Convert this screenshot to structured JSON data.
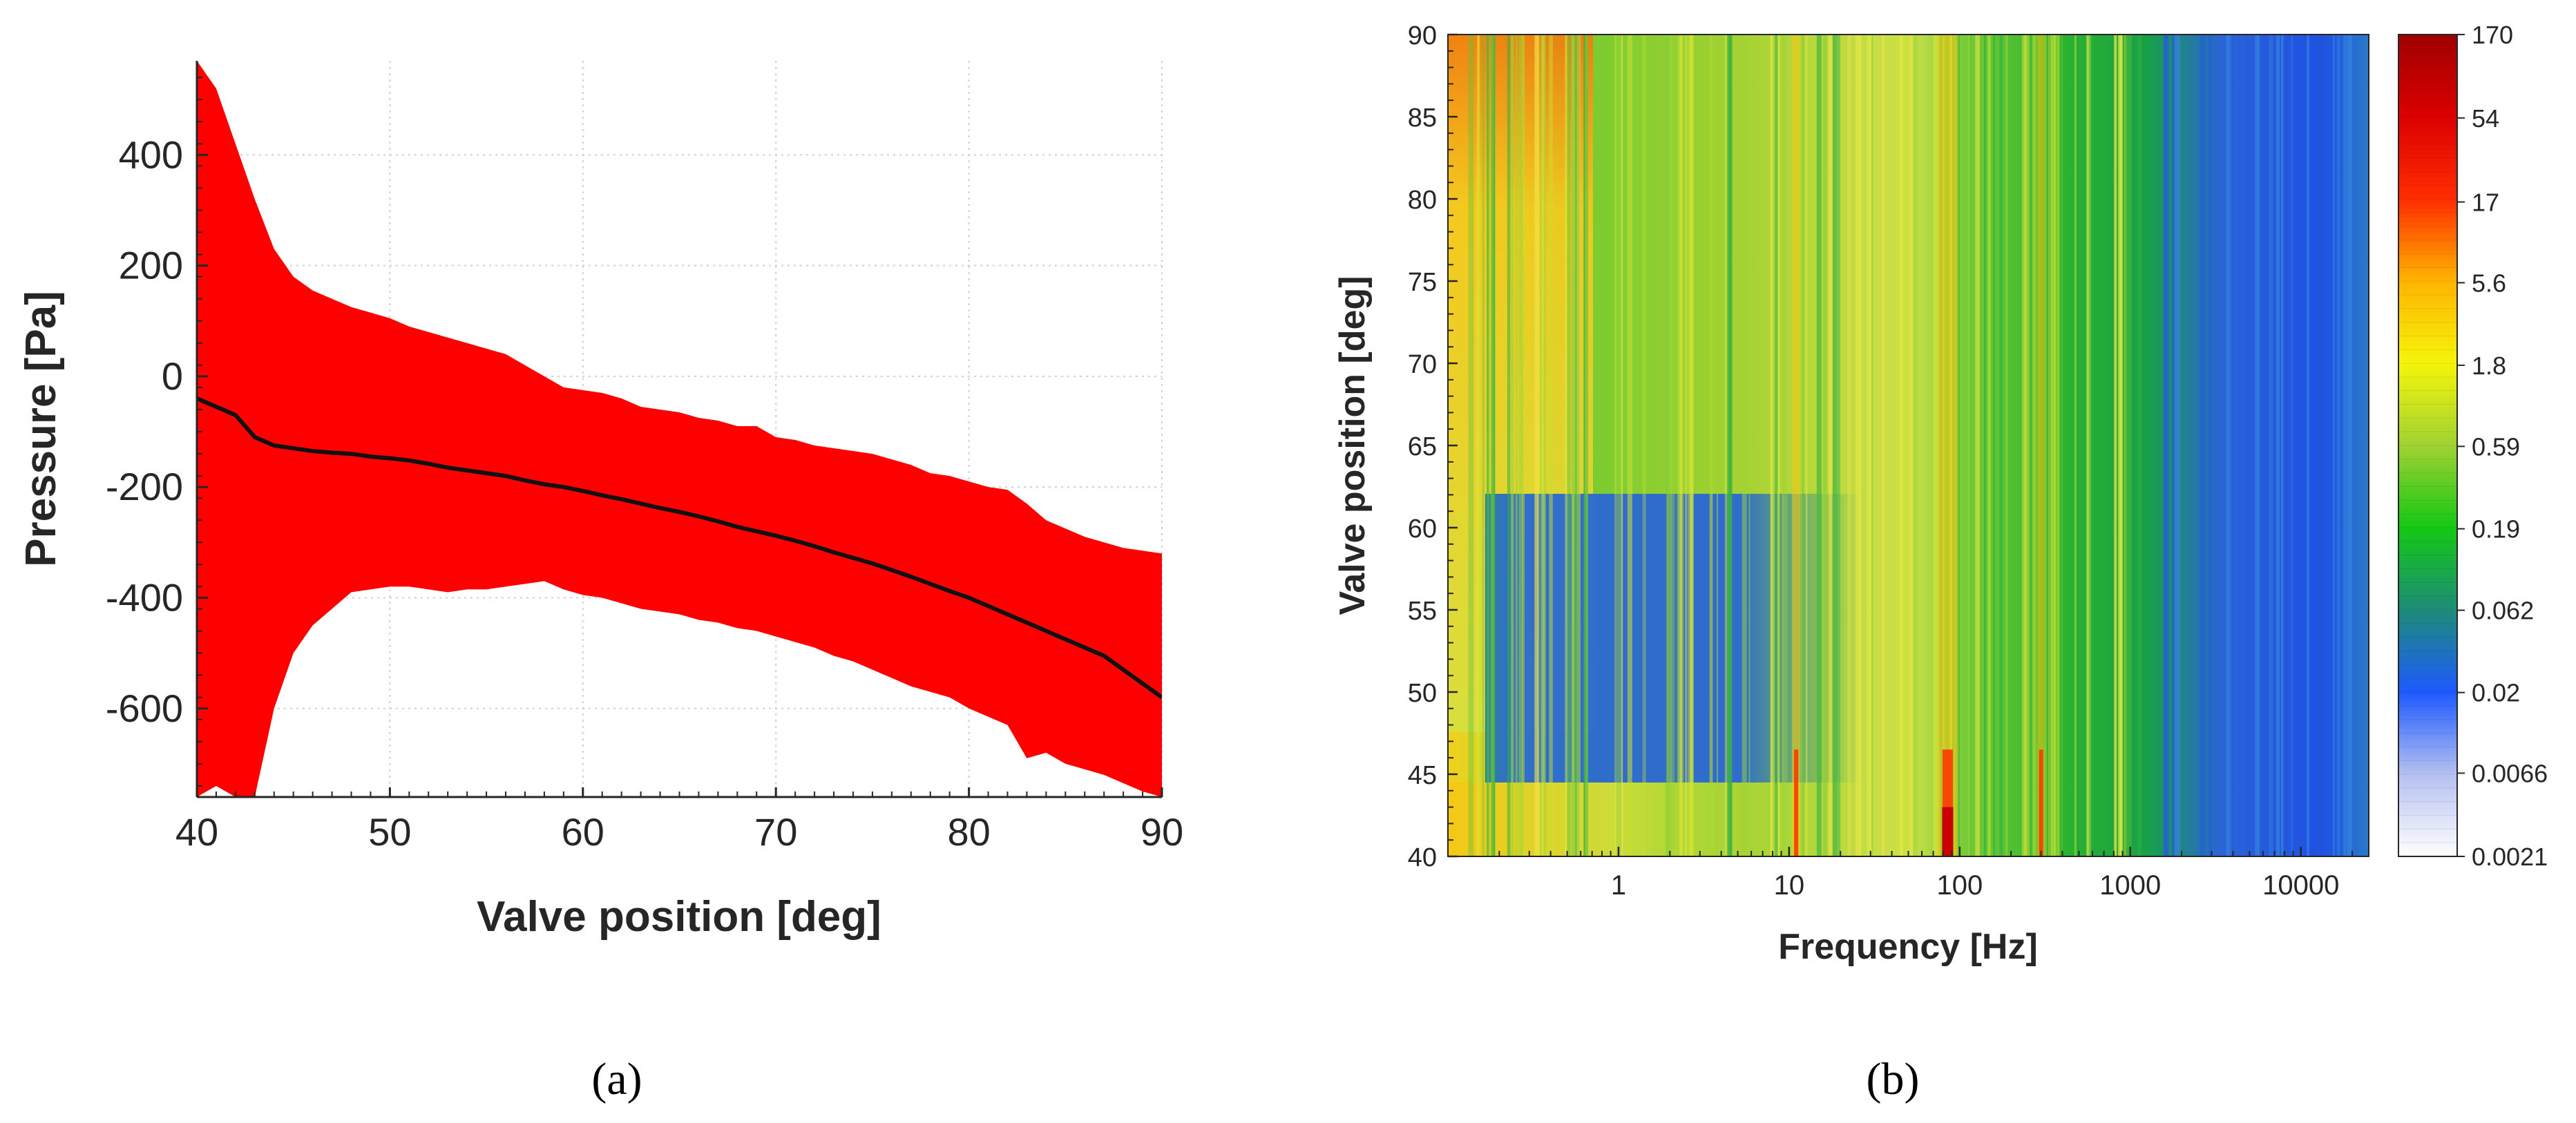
{
  "chart_data": [
    {
      "type": "area",
      "panel_label": "(a)",
      "xlabel": "Valve position [deg]",
      "ylabel": "Pressure [Pa]",
      "xlim": [
        40,
        90
      ],
      "ylim": [
        -760,
        570
      ],
      "grid": true,
      "xticks": [
        40,
        50,
        60,
        70,
        80,
        90
      ],
      "xtick_labels": [
        "40",
        "50",
        "60",
        "70",
        "80",
        "90"
      ],
      "yticks": [
        -600,
        -400,
        -200,
        0,
        200,
        400
      ],
      "ytick_labels": [
        "-600",
        "-400",
        "-200",
        "0",
        "200",
        "400"
      ],
      "colors": {
        "band": "#ff0000",
        "mean": "#111111"
      },
      "series": [
        {
          "name": "upper envelope",
          "x": [
            40,
            41,
            42,
            43,
            44,
            45,
            46,
            47,
            48,
            49,
            50,
            51,
            52,
            53,
            54,
            55,
            56,
            57,
            58,
            59,
            60,
            61,
            62,
            63,
            64,
            65,
            66,
            67,
            68,
            69,
            70,
            71,
            72,
            73,
            74,
            75,
            76,
            77,
            78,
            79,
            80,
            81,
            82,
            83,
            84,
            85,
            86,
            87,
            88,
            89,
            90
          ],
          "values": [
            570,
            520,
            420,
            320,
            230,
            180,
            155,
            140,
            125,
            115,
            105,
            90,
            80,
            70,
            60,
            50,
            40,
            20,
            0,
            -20,
            -25,
            -30,
            -40,
            -55,
            -60,
            -65,
            -75,
            -80,
            -90,
            -90,
            -110,
            -115,
            -125,
            -130,
            -135,
            -140,
            -150,
            -160,
            -175,
            -180,
            -190,
            -200,
            -205,
            -230,
            -260,
            -275,
            -290,
            -300,
            -310,
            -315,
            -320
          ]
        },
        {
          "name": "lower envelope",
          "x": [
            40,
            41,
            42,
            43,
            44,
            45,
            46,
            47,
            48,
            49,
            50,
            51,
            52,
            53,
            54,
            55,
            56,
            57,
            58,
            59,
            60,
            61,
            62,
            63,
            64,
            65,
            66,
            67,
            68,
            69,
            70,
            71,
            72,
            73,
            74,
            75,
            76,
            77,
            78,
            79,
            80,
            81,
            82,
            83,
            84,
            85,
            86,
            87,
            88,
            89,
            90
          ],
          "values": [
            -760,
            -740,
            -760,
            -760,
            -600,
            -500,
            -450,
            -420,
            -390,
            -385,
            -380,
            -380,
            -385,
            -390,
            -385,
            -385,
            -380,
            -375,
            -370,
            -385,
            -395,
            -400,
            -410,
            -420,
            -425,
            -430,
            -440,
            -445,
            -455,
            -460,
            -470,
            -480,
            -490,
            -505,
            -515,
            -530,
            -545,
            -560,
            -570,
            -580,
            -600,
            -615,
            -630,
            -690,
            -680,
            -700,
            -710,
            -720,
            -735,
            -750,
            -760
          ]
        },
        {
          "name": "mean",
          "x": [
            40,
            41,
            42,
            43,
            44,
            45,
            46,
            47,
            48,
            49,
            50,
            51,
            52,
            53,
            54,
            55,
            56,
            57,
            58,
            59,
            60,
            61,
            62,
            63,
            64,
            65,
            66,
            67,
            68,
            69,
            70,
            71,
            72,
            73,
            74,
            75,
            76,
            77,
            78,
            79,
            80,
            81,
            82,
            83,
            84,
            85,
            86,
            87,
            88,
            89,
            90
          ],
          "values": [
            -40,
            -55,
            -70,
            -110,
            -125,
            -130,
            -135,
            -138,
            -140,
            -145,
            -148,
            -152,
            -158,
            -165,
            -170,
            -175,
            -180,
            -188,
            -195,
            -200,
            -207,
            -215,
            -222,
            -230,
            -238,
            -245,
            -253,
            -262,
            -272,
            -280,
            -288,
            -297,
            -307,
            -318,
            -328,
            -338,
            -350,
            -362,
            -375,
            -388,
            -400,
            -415,
            -430,
            -445,
            -460,
            -475,
            -490,
            -505,
            -530,
            -555,
            -580
          ]
        }
      ]
    },
    {
      "type": "heatmap",
      "panel_label": "(b)",
      "xlabel": "Frequency [Hz]",
      "ylabel": "Valve position [deg]",
      "xscale": "log",
      "xlim": [
        0.1,
        25000
      ],
      "ylim": [
        40,
        90
      ],
      "xticks": [
        1,
        10,
        100,
        1000,
        10000
      ],
      "xtick_labels": [
        "1",
        "10",
        "100",
        "1000",
        "10000"
      ],
      "yticks": [
        40,
        45,
        50,
        55,
        60,
        65,
        70,
        75,
        80,
        85,
        90
      ],
      "ytick_labels": [
        "40",
        "45",
        "50",
        "55",
        "60",
        "65",
        "70",
        "75",
        "80",
        "85",
        "90"
      ],
      "colorbar": {
        "scale": "log",
        "range": [
          0.0021,
          170
        ],
        "tick_values": [
          0.0021,
          0.0066,
          0.02,
          0.062,
          0.19,
          0.59,
          1.8,
          5.6,
          17,
          54,
          170
        ],
        "tick_labels": [
          "0.0021",
          "0.0066",
          "0.02",
          "0.062",
          "0.19",
          "0.59",
          "1.8",
          "5.6",
          "17",
          "54",
          "170"
        ],
        "colors": [
          "#ffffff",
          "#b4c0f0",
          "#1e5aff",
          "#1e8c78",
          "#14c814",
          "#a0d232",
          "#f5f50a",
          "#ffb400",
          "#ff2d00",
          "#dc0000",
          "#a00000"
        ]
      },
      "description_regions": [
        {
          "f_min": 0.1,
          "f_max": 0.4,
          "pos_min": 45,
          "pos_max": 90,
          "level": 2.5
        },
        {
          "f_min": 0.3,
          "f_max": 25,
          "pos_min": 45,
          "pos_max": 60,
          "level": 0.03
        },
        {
          "f_min": 0.1,
          "f_max": 25,
          "pos_min": 40,
          "pos_max": 45,
          "level": 2.5
        },
        {
          "f_min": 1,
          "f_max": 1000,
          "pos_min": 40,
          "pos_max": 90,
          "level": 0.6
        },
        {
          "f_min": 1000,
          "f_max": 25000,
          "pos_min": 40,
          "pos_max": 90,
          "level": 0.05
        }
      ],
      "peaks_hz": [
        11,
        85,
        300
      ]
    }
  ]
}
